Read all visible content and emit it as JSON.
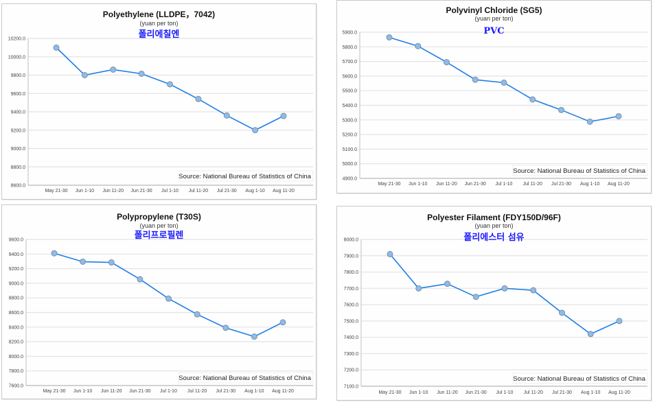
{
  "colors": {
    "line": "#1e7ee6",
    "marker_fill": "#8fbbe9",
    "marker_stroke": "#7a8fa8",
    "grid": "#e3e3e3",
    "axis": "#bdbdbd",
    "korean": "#1a1aff"
  },
  "chart_data": [
    {
      "type": "line",
      "title": "Polyethylene (LLDPE，7042)",
      "subtitle": "(yuan per ton)",
      "annotation": "폴리에칠엔",
      "source": "Source: National Bureau of Statistics of China",
      "categories": [
        "May 21-30",
        "Jun 1-10",
        "Jun 11-20",
        "Jun 21-30",
        "Jul 1-10",
        "Jul 11-20",
        "Jul 21-30",
        "Aug 1-10",
        "Aug 11-20"
      ],
      "values": [
        10100,
        9800,
        9860,
        9815,
        9700,
        9540,
        9360,
        9200,
        9355
      ],
      "ylim": [
        8600,
        10200
      ],
      "yticks": [
        "8600.0",
        "8800.0",
        "9000.0",
        "9200.0",
        "9400.0",
        "9600.0",
        "9800.0",
        "10000.0",
        "10200.0"
      ],
      "grid": true
    },
    {
      "type": "line",
      "title": "Polyvinyl Chloride (SG5)",
      "subtitle": "(yuan per ton)",
      "annotation": "PVC",
      "source": "Source: National Bureau of Statistics of China",
      "categories": [
        "May 21-30",
        "Jun 1-10",
        "Jun 11-20",
        "Jun 21-30",
        "Jul 1-10",
        "Jul 11-20",
        "Jul 21-30",
        "Aug 1-10",
        "Aug 11-20"
      ],
      "values": [
        5865,
        5805,
        5695,
        5575,
        5555,
        5440,
        5368,
        5288,
        5325
      ],
      "ylim": [
        4900,
        5900
      ],
      "yticks": [
        "4900.0",
        "5000.0",
        "5100.0",
        "5200.0",
        "5300.0",
        "5400.0",
        "5500.0",
        "5600.0",
        "5700.0",
        "5800.0",
        "5900.0"
      ],
      "grid": true
    },
    {
      "type": "line",
      "title": "Polypropylene (T30S)",
      "subtitle": "(yuan per ton)",
      "annotation": "폴리프로필렌",
      "source": "Source: National Bureau of Statistics of China",
      "categories": [
        "May 21-30",
        "Jun 1-10",
        "Jun 11-20",
        "Jun 21-30",
        "Jul 1-10",
        "Jul 11-20",
        "Jul 21-30",
        "Aug 1-10",
        "Aug 11-20"
      ],
      "values": [
        9410,
        9295,
        9285,
        9055,
        8790,
        8575,
        8390,
        8270,
        8465
      ],
      "ylim": [
        7600,
        9600
      ],
      "yticks": [
        "7600.0",
        "7800.0",
        "8000.0",
        "8200.0",
        "8400.0",
        "8600.0",
        "8800.0",
        "9000.0",
        "9200.0",
        "9400.0",
        "9600.0"
      ],
      "grid": true
    },
    {
      "type": "line",
      "title": "Polyester Filament (FDY150D/96F)",
      "subtitle": "(yuan per ton)",
      "annotation": "폴리에스터 섬유",
      "source": "Source: National Bureau of Statistics of China",
      "categories": [
        "May 21-30",
        "Jun 1-10",
        "Jun 11-20",
        "Jun 21-30",
        "Jul 1-10",
        "Jul 11-20",
        "Jul 21-30",
        "Aug 1-10",
        "Aug 11-20"
      ],
      "values": [
        7910,
        7700,
        7728,
        7648,
        7700,
        7688,
        7550,
        7420,
        7500
      ],
      "ylim": [
        7100,
        8000
      ],
      "yticks": [
        "7100.0",
        "7200.0",
        "7300.0",
        "7400.0",
        "7500.0",
        "7600.0",
        "7700.0",
        "7800.0",
        "7900.0",
        "8000.0"
      ],
      "grid": true
    }
  ]
}
